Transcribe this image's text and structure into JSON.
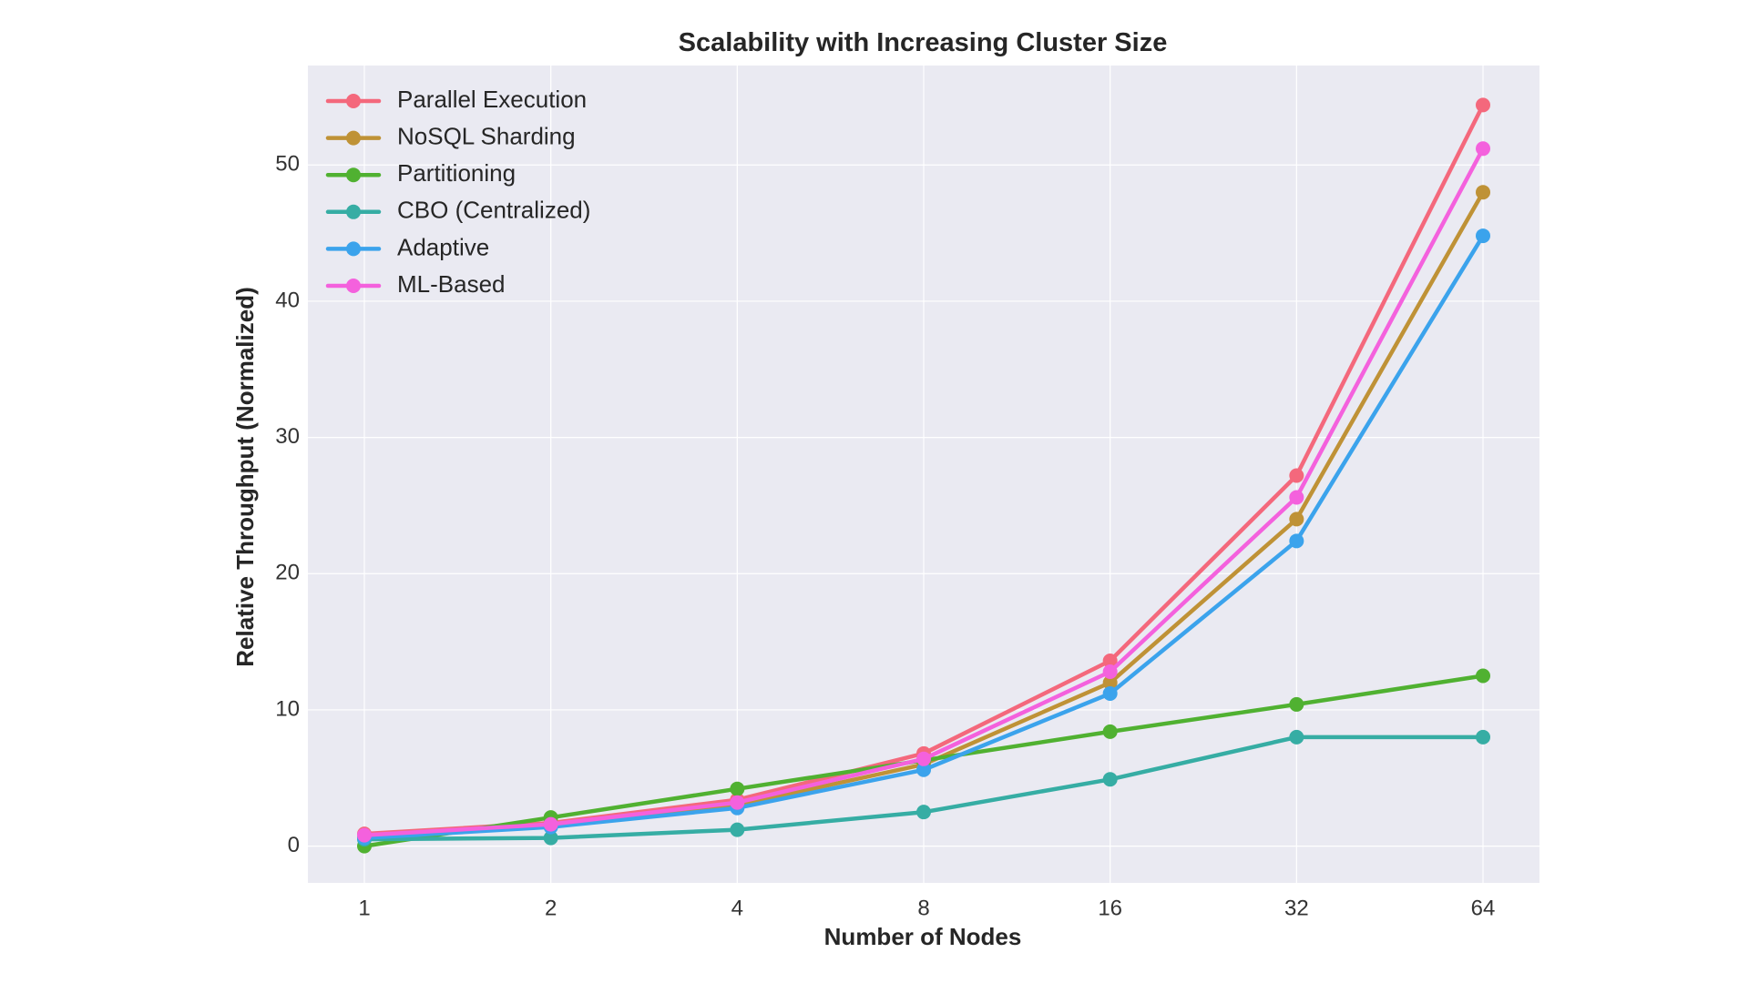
{
  "chart_data": {
    "type": "line",
    "title": "Scalability with Increasing Cluster Size",
    "xlabel": "Number of Nodes",
    "ylabel": "Relative Throughput (Normalized)",
    "x_scale": "log2",
    "x": [
      1,
      2,
      4,
      8,
      16,
      32,
      64
    ],
    "x_tick_labels": [
      "1",
      "2",
      "4",
      "8",
      "16",
      "32",
      "64"
    ],
    "ylim": [
      -2.7,
      57.3
    ],
    "y_ticks": [
      0,
      10,
      20,
      30,
      40,
      50
    ],
    "y_tick_labels": [
      "0",
      "10",
      "20",
      "30",
      "40",
      "50"
    ],
    "grid": true,
    "legend_position": "upper-left",
    "colors": {
      "plot_background": "#eaeaf2",
      "grid": "#ffffff"
    },
    "series": [
      {
        "name": "Parallel Execution",
        "color": "#f4687c",
        "values": [
          0.9,
          1.7,
          3.4,
          6.8,
          13.6,
          27.2,
          54.4
        ]
      },
      {
        "name": "NoSQL Sharding",
        "color": "#bf9236",
        "values": [
          0.7,
          1.5,
          3.0,
          6.0,
          12.0,
          24.0,
          48.0
        ]
      },
      {
        "name": "Partitioning",
        "color": "#50b131",
        "values": [
          0.0,
          2.1,
          4.2,
          6.3,
          8.4,
          10.4,
          12.5
        ]
      },
      {
        "name": "CBO (Centralized)",
        "color": "#36ada4",
        "values": [
          0.5,
          0.6,
          1.2,
          2.5,
          4.9,
          8.0,
          8.0
        ]
      },
      {
        "name": "Adaptive",
        "color": "#3ba3ec",
        "values": [
          0.6,
          1.4,
          2.8,
          5.6,
          11.2,
          22.4,
          44.8
        ]
      },
      {
        "name": "ML-Based",
        "color": "#f461dd",
        "values": [
          0.8,
          1.6,
          3.2,
          6.4,
          12.8,
          25.6,
          51.2
        ]
      }
    ]
  }
}
